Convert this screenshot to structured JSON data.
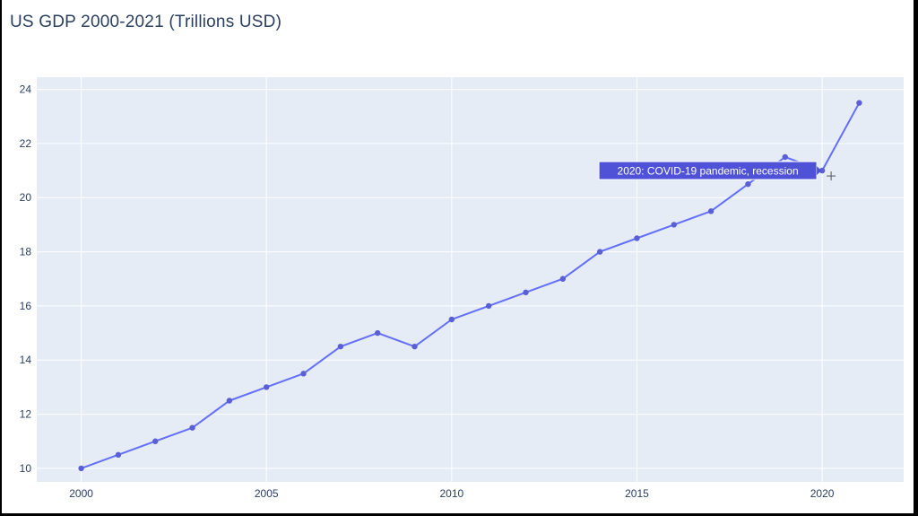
{
  "title": "US GDP 2000-2021 (Trillions USD)",
  "colors": {
    "plot_bg": "#e5ecf6",
    "grid": "#ffffff",
    "line": "#636efa",
    "marker": "#5a5fd6",
    "hover_bg": "#4f52d6"
  },
  "chart_data": {
    "type": "line",
    "title": "US GDP 2000-2021 (Trillions USD)",
    "xlabel": "",
    "ylabel": "",
    "x": [
      2000,
      2001,
      2002,
      2003,
      2004,
      2005,
      2006,
      2007,
      2008,
      2009,
      2010,
      2011,
      2012,
      2013,
      2014,
      2015,
      2016,
      2017,
      2018,
      2019,
      2020,
      2021
    ],
    "y": [
      10,
      10.5,
      11,
      11.5,
      12.5,
      13,
      13.5,
      14.5,
      15,
      14.5,
      15.5,
      16,
      16.5,
      17,
      18,
      18.5,
      19,
      19.5,
      20.5,
      21.5,
      21,
      23.5
    ],
    "xlim": [
      1998.8,
      2022.2
    ],
    "ylim": [
      9.5,
      24.45
    ],
    "xticks": [
      2000,
      2005,
      2010,
      2015,
      2020
    ],
    "yticks": [
      10,
      12,
      14,
      16,
      18,
      20,
      22,
      24
    ],
    "grid": true,
    "hover": {
      "x": 2020,
      "text": "2020: COVID-19 pandemic, recession"
    }
  }
}
